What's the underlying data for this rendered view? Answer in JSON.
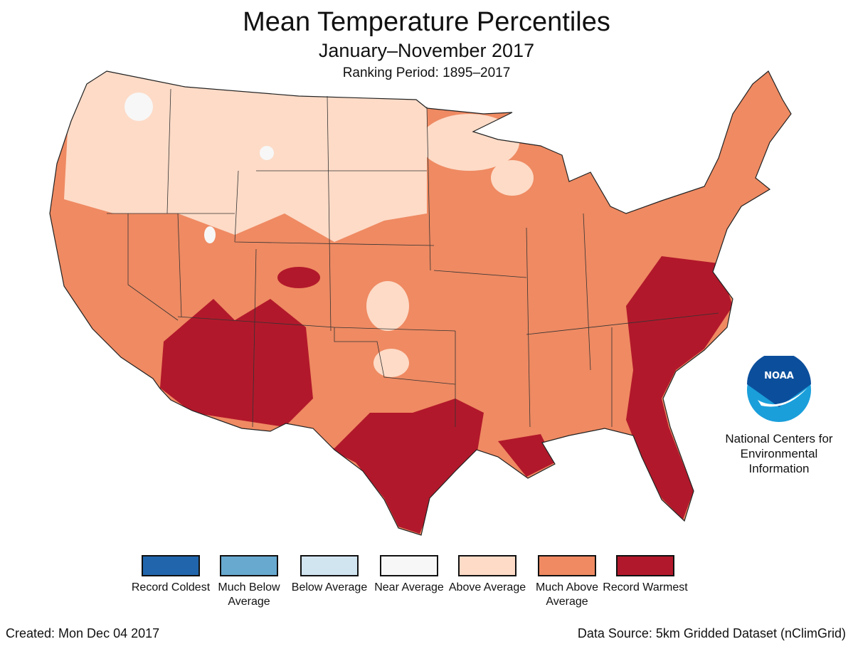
{
  "title": "Mean Temperature Percentiles",
  "subtitle": "January–November 2017",
  "ranking_period": "Ranking Period: 1895–2017",
  "legend": [
    {
      "label": "Record Coldest",
      "color": "#2166ac"
    },
    {
      "label": "Much Below Average",
      "color": "#67a9cf"
    },
    {
      "label": "Below Average",
      "color": "#d1e5f0"
    },
    {
      "label": "Near Average",
      "color": "#f7f7f7"
    },
    {
      "label": "Above Average",
      "color": "#fddbc7"
    },
    {
      "label": "Much Above Average",
      "color": "#ef8a62"
    },
    {
      "label": "Record Warmest",
      "color": "#b2182b"
    }
  ],
  "logo": {
    "text": "NOAA",
    "org": "National Centers for Environmental Information"
  },
  "created": "Created: Mon Dec 04 2017",
  "data_source": "Data Source: 5km Gridded Dataset (nClimGrid)"
}
